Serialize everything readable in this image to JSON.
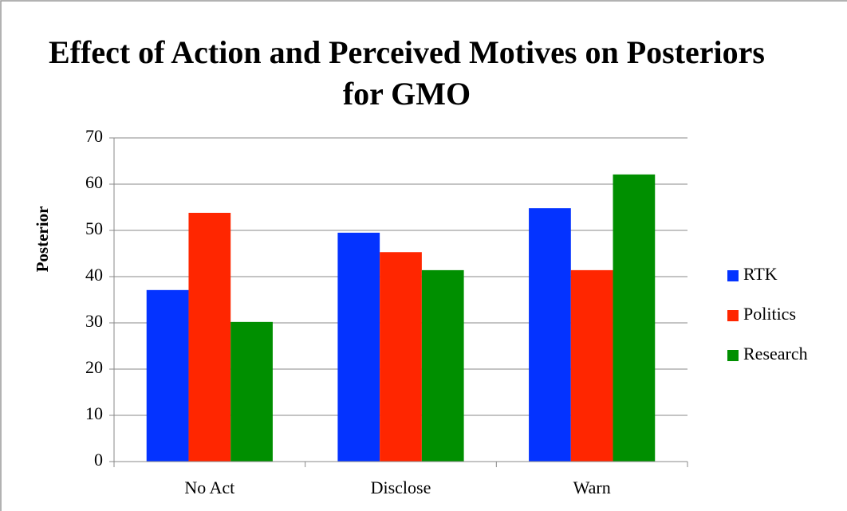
{
  "chart_data": {
    "type": "bar",
    "title": "Effect of Action and Perceived Motives on Posteriors for GMO",
    "y_label": "Posterior",
    "categories": [
      "No Act",
      "Disclose",
      "Warn"
    ],
    "series": [
      {
        "name": "RTK",
        "color": "#0433ff",
        "values": [
          37.1,
          49.5,
          54.8
        ]
      },
      {
        "name": "Politics",
        "color": "#ff2600",
        "values": [
          53.8,
          45.3,
          41.4
        ]
      },
      {
        "name": "Research",
        "color": "#008f00",
        "values": [
          30.2,
          41.4,
          62.1
        ]
      }
    ],
    "ylim": [
      0,
      70
    ],
    "yticks": [
      0,
      10,
      20,
      30,
      40,
      50,
      60,
      70
    ],
    "grid": true,
    "legend": "right"
  }
}
